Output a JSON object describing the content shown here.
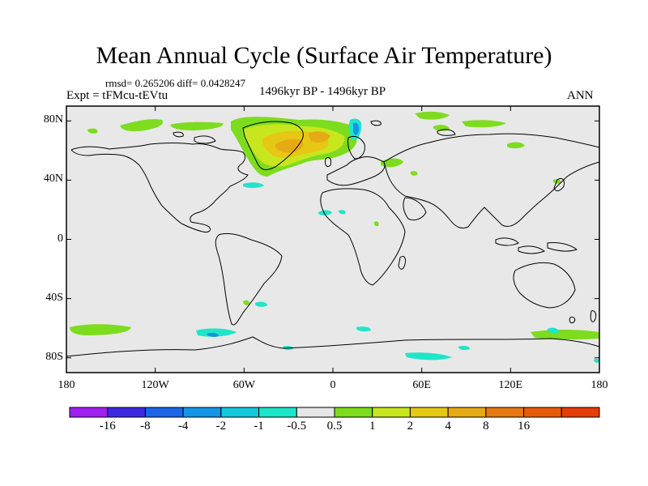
{
  "title": "Mean Annual Cycle (Surface Air Temperature)",
  "stats": "rmsd= 0.265206 diff= 0.0428247",
  "experiment": "Expt = tFMcu-tEVtu",
  "period": "1496kyr BP - 1496kyr BP",
  "season": "ANN",
  "map": {
    "background_color": "#e8e8e8",
    "lon_ticks": [
      "180",
      "120W",
      "60W",
      "0",
      "60E",
      "120E",
      "180"
    ],
    "lat_ticks": [
      "80N",
      "40N",
      "0",
      "40S",
      "80S"
    ]
  },
  "colorbar": {
    "colors": [
      "#a020f0",
      "#3c28e0",
      "#1e64e6",
      "#1496e6",
      "#14c8dc",
      "#1ee6c8",
      "#e6e6e6",
      "#7ddc1e",
      "#c8e61e",
      "#e6c814",
      "#e6aa14",
      "#e67814",
      "#e65a0a",
      "#e63c0a"
    ],
    "labels": [
      "-16",
      "-8",
      "-4",
      "-2",
      "-1",
      "-0.5",
      "0.5",
      "1",
      "2",
      "4",
      "8",
      "16"
    ]
  }
}
